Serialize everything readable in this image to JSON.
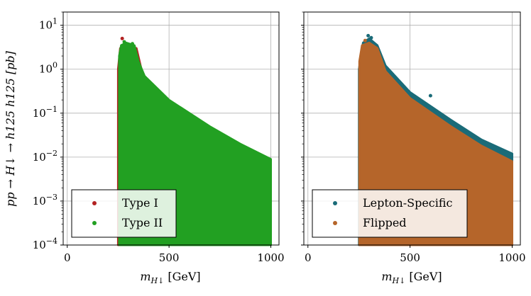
{
  "colors": {
    "type1": "#b22222",
    "type2": "#22a022",
    "lepton": "#1a6b78",
    "flipped": "#b5652a",
    "grid": "#b0b0b0"
  },
  "chart_data": [
    {
      "type": "scatter",
      "panel": "left",
      "xlabel": "m_{H↓} [GeV]",
      "xlabel_main": "m",
      "xlabel_sub": "H",
      "xlabel_arrow": "↓",
      "xlabel_unit": " [GeV]",
      "ylabel": "pp → H↓ → h125 h125 [pb]",
      "xlim": [
        -20,
        1040
      ],
      "ylim": [
        0.0001,
        20
      ],
      "yscale": "log",
      "grid": true,
      "xticks": [
        0,
        500,
        1000
      ],
      "yticks": [
        {
          "value": 10,
          "base": "10",
          "exp": "1"
        },
        {
          "value": 1,
          "base": "10",
          "exp": "0"
        },
        {
          "value": 0.1,
          "base": "10",
          "exp": "−1"
        },
        {
          "value": 0.01,
          "base": "10",
          "exp": "−2"
        },
        {
          "value": 0.001,
          "base": "10",
          "exp": "−3"
        },
        {
          "value": 0.0001,
          "base": "10",
          "exp": "−4"
        }
      ],
      "legend": "lower-left",
      "series": [
        {
          "name": "Type I",
          "color_key": "type1",
          "upper_envelope": [
            [
              250,
              1.0
            ],
            [
              260,
              3.0
            ],
            [
              300,
              3.3
            ],
            [
              340,
              3.0
            ],
            [
              360,
              1.2
            ],
            [
              380,
              0.5
            ],
            [
              400,
              0.3
            ]
          ],
          "points": [
            [
              270,
              5.0
            ],
            [
              300,
              3.5
            ],
            [
              310,
              3.0
            ]
          ]
        },
        {
          "name": "Type II",
          "color_key": "type2",
          "upper_envelope": [
            [
              255,
              2.0
            ],
            [
              265,
              3.5
            ],
            [
              290,
              4.0
            ],
            [
              330,
              3.5
            ],
            [
              350,
              1.5
            ],
            [
              380,
              0.7
            ],
            [
              500,
              0.2
            ],
            [
              700,
              0.05
            ],
            [
              850,
              0.02
            ],
            [
              1000,
              0.009
            ]
          ],
          "points": [
            [
              280,
              4.2
            ],
            [
              320,
              3.8
            ]
          ]
        }
      ]
    },
    {
      "type": "scatter",
      "panel": "right",
      "xlabel": "m_{H↓} [GeV]",
      "xlabel_main": "m",
      "xlabel_sub": "H",
      "xlabel_arrow": "↓",
      "xlabel_unit": " [GeV]",
      "xlim": [
        -20,
        1040
      ],
      "ylim": [
        0.0001,
        20
      ],
      "yscale": "log",
      "grid": true,
      "xticks": [
        0,
        500,
        1000
      ],
      "legend": "lower-left",
      "series": [
        {
          "name": "Lepton-Specific",
          "color_key": "lepton",
          "upper_envelope": [
            [
              250,
              1.0
            ],
            [
              270,
              4.0
            ],
            [
              300,
              5.0
            ],
            [
              340,
              3.5
            ],
            [
              380,
              1.2
            ],
            [
              500,
              0.3
            ],
            [
              700,
              0.07
            ],
            [
              850,
              0.025
            ],
            [
              1000,
              0.012
            ]
          ],
          "points": [
            [
              295,
              5.8
            ],
            [
              310,
              5.2
            ],
            [
              600,
              0.25
            ]
          ]
        },
        {
          "name": "Flipped",
          "color_key": "flipped",
          "upper_envelope": [
            [
              252,
              1.5
            ],
            [
              265,
              3.5
            ],
            [
              300,
              4.0
            ],
            [
              340,
              3.0
            ],
            [
              380,
              0.9
            ],
            [
              500,
              0.22
            ],
            [
              700,
              0.05
            ],
            [
              850,
              0.018
            ],
            [
              1000,
              0.008
            ]
          ],
          "points": [
            [
              280,
              4.5
            ]
          ]
        }
      ]
    }
  ]
}
